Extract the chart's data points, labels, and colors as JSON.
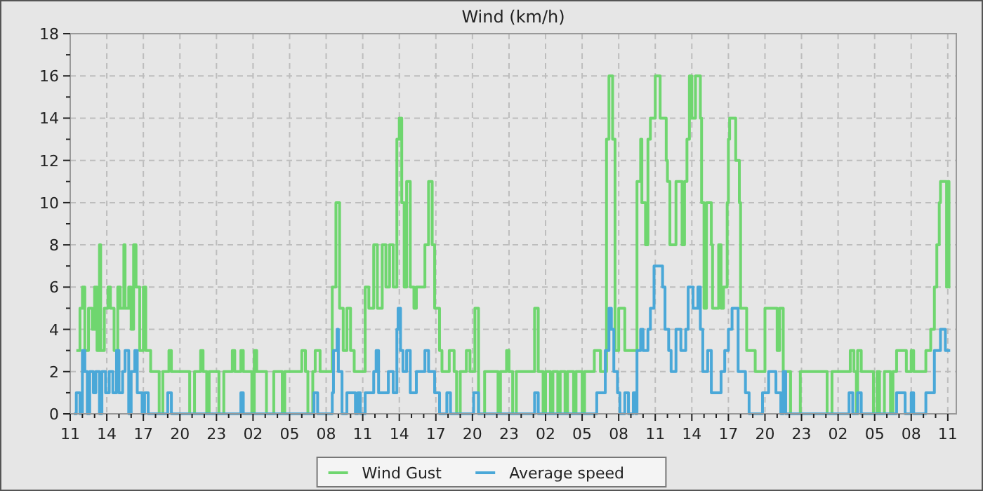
{
  "chart_data": {
    "type": "step",
    "title": "Wind (km/h)",
    "xlim": [
      "--01-01T11:00",
      "--01-04T11:42"
    ],
    "ylim": [
      0,
      18
    ],
    "xticks": [
      {
        "value": "--01-01T11:00",
        "label": "11"
      },
      {
        "value": "--01-01T12:00",
        "label": null
      },
      {
        "value": "--01-01T13:00",
        "label": null
      },
      {
        "value": "--01-01T14:00",
        "label": "14"
      },
      {
        "value": "--01-01T15:00",
        "label": null
      },
      {
        "value": "--01-01T16:00",
        "label": null
      },
      {
        "value": "--01-01T17:00",
        "label": "17"
      },
      {
        "value": "--01-01T18:00",
        "label": null
      },
      {
        "value": "--01-01T19:00",
        "label": null
      },
      {
        "value": "--01-01T20:00",
        "label": "20"
      },
      {
        "value": "--01-01T21:00",
        "label": null
      },
      {
        "value": "--01-01T22:00",
        "label": null
      },
      {
        "value": "--01-01T23:00",
        "label": "23"
      },
      {
        "value": "--01-02T00:00",
        "label": null
      },
      {
        "value": "--01-02T01:00",
        "label": null
      },
      {
        "value": "--01-02T02:00",
        "label": "02"
      },
      {
        "value": "--01-02T03:00",
        "label": null
      },
      {
        "value": "--01-02T04:00",
        "label": null
      },
      {
        "value": "--01-02T05:00",
        "label": "05"
      },
      {
        "value": "--01-02T06:00",
        "label": null
      },
      {
        "value": "--01-02T07:00",
        "label": null
      },
      {
        "value": "--01-02T08:00",
        "label": "08"
      },
      {
        "value": "--01-02T09:00",
        "label": null
      },
      {
        "value": "--01-02T10:00",
        "label": null
      },
      {
        "value": "--01-02T11:00",
        "label": "11"
      },
      {
        "value": "--01-02T12:00",
        "label": null
      },
      {
        "value": "--01-02T13:00",
        "label": null
      },
      {
        "value": "--01-02T14:00",
        "label": "14"
      },
      {
        "value": "--01-02T15:00",
        "label": null
      },
      {
        "value": "--01-02T16:00",
        "label": null
      },
      {
        "value": "--01-02T17:00",
        "label": "17"
      },
      {
        "value": "--01-02T18:00",
        "label": null
      },
      {
        "value": "--01-02T19:00",
        "label": null
      },
      {
        "value": "--01-02T20:00",
        "label": "20"
      },
      {
        "value": "--01-02T21:00",
        "label": null
      },
      {
        "value": "--01-02T22:00",
        "label": null
      },
      {
        "value": "--01-02T23:00",
        "label": "23"
      },
      {
        "value": "--01-03T00:00",
        "label": null
      },
      {
        "value": "--01-03T01:00",
        "label": null
      },
      {
        "value": "--01-03T02:00",
        "label": "02"
      },
      {
        "value": "--01-03T03:00",
        "label": null
      },
      {
        "value": "--01-03T04:00",
        "label": null
      },
      {
        "value": "--01-03T05:00",
        "label": "05"
      },
      {
        "value": "--01-03T06:00",
        "label": null
      },
      {
        "value": "--01-03T07:00",
        "label": null
      },
      {
        "value": "--01-03T08:00",
        "label": "08"
      },
      {
        "value": "--01-03T09:00",
        "label": null
      },
      {
        "value": "--01-03T10:00",
        "label": null
      },
      {
        "value": "--01-03T11:00",
        "label": "11"
      },
      {
        "value": "--01-03T12:00",
        "label": null
      },
      {
        "value": "--01-03T13:00",
        "label": null
      },
      {
        "value": "--01-03T14:00",
        "label": "14"
      },
      {
        "value": "--01-03T15:00",
        "label": null
      },
      {
        "value": "--01-03T16:00",
        "label": null
      },
      {
        "value": "--01-03T17:00",
        "label": "17"
      },
      {
        "value": "--01-03T18:00",
        "label": null
      },
      {
        "value": "--01-03T19:00",
        "label": null
      },
      {
        "value": "--01-03T20:00",
        "label": "20"
      },
      {
        "value": "--01-03T21:00",
        "label": null
      },
      {
        "value": "--01-03T22:00",
        "label": null
      },
      {
        "value": "--01-03T23:00",
        "label": "23"
      },
      {
        "value": "--01-04T00:00",
        "label": null
      },
      {
        "value": "--01-04T01:00",
        "label": null
      },
      {
        "value": "--01-04T02:00",
        "label": "02"
      },
      {
        "value": "--01-04T03:00",
        "label": null
      },
      {
        "value": "--01-04T04:00",
        "label": null
      },
      {
        "value": "--01-04T05:00",
        "label": "05"
      },
      {
        "value": "--01-04T06:00",
        "label": null
      },
      {
        "value": "--01-04T07:00",
        "label": null
      },
      {
        "value": "--01-04T08:00",
        "label": "08"
      },
      {
        "value": "--01-04T09:00",
        "label": null
      },
      {
        "value": "--01-04T10:00",
        "label": null
      },
      {
        "value": "--01-04T11:00",
        "label": "11"
      }
    ],
    "yticks": [
      0,
      {
        "value": 1,
        "label": null
      },
      2,
      {
        "value": 3,
        "label": null
      },
      4,
      {
        "value": 5,
        "label": null
      },
      6,
      {
        "value": 7,
        "label": null
      },
      8,
      {
        "value": 9,
        "label": null
      },
      10,
      {
        "value": 11,
        "label": null
      },
      12,
      {
        "value": 13,
        "label": null
      },
      14,
      {
        "value": 15,
        "label": null
      },
      16,
      {
        "value": 17,
        "label": null
      },
      18
    ],
    "grid": true,
    "legend": "bottom",
    "line_style": "solid",
    "marker": "none",
    "series": [
      {
        "name": "Wind Gust",
        "color": "#6fd66f",
        "x": [
          "--01-01T11:30",
          "--01-01T11:48",
          "--01-01T12:00",
          "--01-01T12:12",
          "--01-01T12:30",
          "--01-01T12:48",
          "--01-01T13:00",
          "--01-01T13:12",
          "--01-01T13:24",
          "--01-01T13:30",
          "--01-01T13:48",
          "--01-01T14:06",
          "--01-01T14:18",
          "--01-01T14:36",
          "--01-01T14:54",
          "--01-01T15:06",
          "--01-01T15:24",
          "--01-01T15:30",
          "--01-01T15:48",
          "--01-01T16:00",
          "--01-01T16:12",
          "--01-01T16:24",
          "--01-01T16:42",
          "--01-01T17:00",
          "--01-01T17:12",
          "--01-01T17:36",
          "--01-01T18:18",
          "--01-01T18:36",
          "--01-01T19:06",
          "--01-01T19:18",
          "--01-01T20:48",
          "--01-01T21:12",
          "--01-01T21:42",
          "--01-01T21:54",
          "--01-01T22:12",
          "--01-01T22:24",
          "--01-01T23:12",
          "--01-01T23:36",
          "--01-02T00:18",
          "--01-02T00:30",
          "--01-02T01:00",
          "--01-02T01:12",
          "--01-02T01:54",
          "--01-02T02:06",
          "--01-02T02:18",
          "--01-02T03:06",
          "--01-02T03:42",
          "--01-02T04:24",
          "--01-02T04:36",
          "--01-02T06:00",
          "--01-02T06:18",
          "--01-02T06:30",
          "--01-02T06:54",
          "--01-02T07:06",
          "--01-02T07:30",
          "--01-02T08:30",
          "--01-02T08:48",
          "--01-02T09:06",
          "--01-02T09:24",
          "--01-02T09:42",
          "--01-02T10:00",
          "--01-02T10:18",
          "--01-02T11:12",
          "--01-02T11:30",
          "--01-02T11:54",
          "--01-02T12:12",
          "--01-02T12:36",
          "--01-02T12:54",
          "--01-02T13:12",
          "--01-02T13:30",
          "--01-02T13:48",
          "--01-02T14:00",
          "--01-02T14:12",
          "--01-02T14:24",
          "--01-02T14:36",
          "--01-02T14:54",
          "--01-02T15:12",
          "--01-02T15:24",
          "--01-02T16:06",
          "--01-02T16:24",
          "--01-02T16:42",
          "--01-02T16:54",
          "--01-02T17:18",
          "--01-02T17:30",
          "--01-02T18:06",
          "--01-02T18:30",
          "--01-02T18:42",
          "--01-02T19:00",
          "--01-02T19:30",
          "--01-02T19:48",
          "--01-02T20:12",
          "--01-02T20:30",
          "--01-02T21:00",
          "--01-02T22:06",
          "--01-02T22:18",
          "--01-02T22:48",
          "--01-02T23:00",
          "--01-02T23:18",
          "--01-02T23:36",
          "--01-03T01:06",
          "--01-03T01:24",
          "--01-03T01:48",
          "--01-03T02:00",
          "--01-03T02:24",
          "--01-03T02:36",
          "--01-03T03:00",
          "--01-03T03:12",
          "--01-03T03:36",
          "--01-03T03:48",
          "--01-03T04:18",
          "--01-03T04:30",
          "--01-03T05:00",
          "--01-03T05:12",
          "--01-03T06:00",
          "--01-03T06:30",
          "--01-03T07:00",
          "--01-03T07:12",
          "--01-03T07:30",
          "--01-03T07:42",
          "--01-03T08:00",
          "--01-03T08:30",
          "--01-03T09:30",
          "--01-03T09:48",
          "--01-03T09:54",
          "--01-03T10:12",
          "--01-03T10:24",
          "--01-03T10:36",
          "--01-03T11:00",
          "--01-03T11:24",
          "--01-03T11:54",
          "--01-03T12:00",
          "--01-03T12:12",
          "--01-03T12:42",
          "--01-03T13:12",
          "--01-03T13:24",
          "--01-03T13:36",
          "--01-03T13:48",
          "--01-03T14:00",
          "--01-03T14:18",
          "--01-03T14:42",
          "--01-03T14:48",
          "--01-03T15:00",
          "--01-03T15:12",
          "--01-03T15:36",
          "--01-03T15:42",
          "--01-03T16:12",
          "--01-03T16:24",
          "--01-03T16:36",
          "--01-03T16:54",
          "--01-03T17:00",
          "--01-03T17:06",
          "--01-03T17:36",
          "--01-03T17:54",
          "--01-03T18:00",
          "--01-03T18:30",
          "--01-03T19:12",
          "--01-03T20:00",
          "--01-03T21:00",
          "--01-03T21:12",
          "--01-03T21:30",
          "--01-03T22:06",
          "--01-03T22:54",
          "--01-04T01:06",
          "--01-04T01:30",
          "--01-04T03:00",
          "--01-04T03:18",
          "--01-04T03:30",
          "--01-04T03:36",
          "--01-04T03:54",
          "--01-04T04:54",
          "--01-04T05:12",
          "--01-04T05:24",
          "--01-04T05:48",
          "--01-04T06:18",
          "--01-04T06:30",
          "--01-04T06:48",
          "--01-04T07:36",
          "--01-04T08:00",
          "--01-04T08:12",
          "--01-04T09:12",
          "--01-04T09:36",
          "--01-04T09:54",
          "--01-04T10:06",
          "--01-04T10:18",
          "--01-04T10:24",
          "--01-04T10:54",
          "--01-04T11:00",
          "--01-04T11:06",
          "--01-04T11:12"
        ],
        "values": [
          3,
          5,
          6,
          3,
          5,
          4,
          6,
          3,
          8,
          3,
          5,
          6,
          5,
          3,
          6,
          5,
          8,
          5,
          6,
          4,
          8,
          6,
          3,
          6,
          3,
          2,
          0,
          2,
          3,
          2,
          0,
          2,
          3,
          2,
          0,
          2,
          0,
          2,
          3,
          2,
          3,
          2,
          0,
          3,
          2,
          0,
          2,
          0,
          2,
          3,
          2,
          0,
          2,
          3,
          2,
          6,
          10,
          5,
          3,
          5,
          3,
          2,
          6,
          5,
          8,
          5,
          8,
          6,
          8,
          6,
          13,
          14,
          10,
          6,
          11,
          6,
          5,
          6,
          8,
          11,
          8,
          5,
          3,
          2,
          3,
          2,
          0,
          2,
          3,
          2,
          5,
          0,
          2,
          0,
          2,
          3,
          2,
          0,
          2,
          5,
          2,
          0,
          2,
          0,
          2,
          0,
          2,
          0,
          2,
          0,
          2,
          0,
          2,
          3,
          2,
          13,
          16,
          13,
          3,
          5,
          3,
          11,
          13,
          10,
          8,
          13,
          14,
          16,
          14,
          12,
          11,
          8,
          11,
          8,
          11,
          13,
          16,
          14,
          16,
          14,
          10,
          5,
          10,
          8,
          5,
          8,
          5,
          6,
          10,
          13,
          14,
          12,
          10,
          5,
          3,
          2,
          5,
          3,
          5,
          2,
          0,
          2,
          0,
          2,
          3,
          2,
          0,
          3,
          2,
          0,
          2,
          0,
          2,
          0,
          2,
          3,
          2,
          3,
          2,
          3,
          4,
          6,
          8,
          10,
          11,
          6,
          11,
          6,
          6
        ]
      },
      {
        "name": "Average speed",
        "color": "#4aa8d8",
        "x": [
          "--01-01T11:18",
          "--01-01T11:30",
          "--01-01T11:48",
          "--01-01T12:00",
          "--01-01T12:12",
          "--01-01T12:24",
          "--01-01T12:36",
          "--01-01T12:54",
          "--01-01T13:06",
          "--01-01T13:24",
          "--01-01T13:36",
          "--01-01T13:54",
          "--01-01T14:12",
          "--01-01T14:30",
          "--01-01T14:48",
          "--01-01T15:00",
          "--01-01T15:18",
          "--01-01T15:30",
          "--01-01T15:48",
          "--01-01T16:00",
          "--01-01T16:18",
          "--01-01T16:30",
          "--01-01T16:54",
          "--01-01T17:06",
          "--01-01T17:24",
          "--01-01T19:00",
          "--01-01T19:18",
          "--01-02T01:00",
          "--01-02T01:12",
          "--01-02T07:00",
          "--01-02T07:18",
          "--01-02T08:30",
          "--01-02T08:36",
          "--01-02T08:54",
          "--01-02T09:00",
          "--01-02T09:18",
          "--01-02T09:42",
          "--01-02T10:24",
          "--01-02T10:36",
          "--01-02T10:48",
          "--01-02T11:12",
          "--01-02T11:54",
          "--01-02T12:06",
          "--01-02T12:18",
          "--01-02T13:06",
          "--01-02T13:30",
          "--01-02T13:48",
          "--01-02T13:54",
          "--01-02T14:06",
          "--01-02T14:18",
          "--01-02T14:36",
          "--01-02T14:54",
          "--01-02T15:24",
          "--01-02T16:06",
          "--01-02T16:24",
          "--01-02T16:54",
          "--01-02T17:18",
          "--01-02T17:54",
          "--01-02T18:12",
          "--01-02T20:06",
          "--01-02T20:30",
          "--01-03T01:06",
          "--01-03T01:24",
          "--01-03T06:12",
          "--01-03T06:54",
          "--01-03T07:12",
          "--01-03T07:24",
          "--01-03T07:36",
          "--01-03T07:54",
          "--01-03T08:06",
          "--01-03T08:30",
          "--01-03T08:48",
          "--01-03T09:12",
          "--01-03T09:24",
          "--01-03T09:30",
          "--01-03T09:48",
          "--01-03T10:00",
          "--01-03T10:24",
          "--01-03T10:36",
          "--01-03T10:54",
          "--01-03T11:36",
          "--01-03T11:48",
          "--01-03T12:06",
          "--01-03T12:18",
          "--01-03T12:42",
          "--01-03T13:06",
          "--01-03T13:30",
          "--01-03T13:42",
          "--01-03T14:06",
          "--01-03T14:30",
          "--01-03T14:42",
          "--01-03T14:54",
          "--01-03T15:18",
          "--01-03T15:36",
          "--01-03T16:24",
          "--01-03T16:42",
          "--01-03T17:00",
          "--01-03T17:18",
          "--01-03T17:48",
          "--01-03T18:24",
          "--01-03T18:42",
          "--01-03T19:48",
          "--01-03T20:18",
          "--01-03T20:54",
          "--01-03T21:18",
          "--01-03T21:30",
          "--01-03T21:42",
          "--01-04T02:54",
          "--01-04T03:12",
          "--01-04T03:36",
          "--01-04T03:54",
          "--01-04T06:48",
          "--01-04T07:30",
          "--01-04T08:00",
          "--01-04T08:12",
          "--01-04T09:12",
          "--01-04T09:54",
          "--01-04T10:06",
          "--01-04T10:24",
          "--01-04T10:48",
          "--01-04T11:12"
        ],
        "values": [
          0,
          1,
          0,
          3,
          2,
          0,
          2,
          1,
          2,
          0,
          2,
          1,
          2,
          1,
          3,
          1,
          2,
          3,
          0,
          2,
          3,
          1,
          0,
          1,
          0,
          1,
          0,
          1,
          0,
          1,
          0,
          1,
          3,
          4,
          2,
          0,
          1,
          0,
          1,
          0,
          1,
          2,
          3,
          1,
          2,
          1,
          4,
          5,
          3,
          2,
          3,
          1,
          2,
          3,
          2,
          1,
          0,
          1,
          0,
          1,
          0,
          1,
          0,
          1,
          3,
          5,
          4,
          2,
          1,
          0,
          1,
          0,
          1,
          0,
          3,
          4,
          3,
          4,
          5,
          7,
          6,
          4,
          3,
          2,
          4,
          3,
          4,
          6,
          5,
          6,
          4,
          2,
          3,
          1,
          2,
          3,
          4,
          5,
          2,
          1,
          0,
          1,
          2,
          1,
          0,
          2,
          0,
          1,
          0,
          1,
          0,
          1,
          0,
          1,
          0,
          1,
          3,
          3,
          4,
          3,
          3
        ]
      }
    ]
  }
}
